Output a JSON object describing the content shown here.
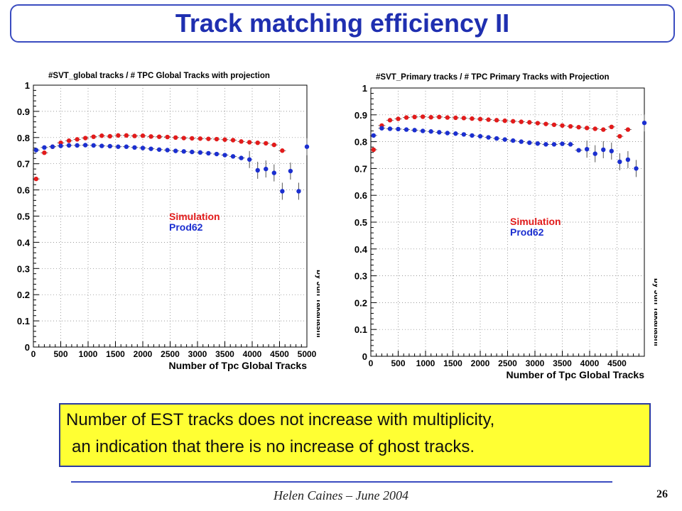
{
  "title": "Track matching efficiency II",
  "note": {
    "line1": "Number of EST tracks does not increase with multiplicity,",
    "line2": "an indication that there is no increase of ghost tracks."
  },
  "footer": {
    "author": "Helen Caines – June 2004",
    "page": "26"
  },
  "colors": {
    "simulation": "#e21b1b",
    "prod62": "#1b2fd0",
    "title": "#1f2fb0",
    "note_bg": "#ffff33"
  },
  "chart_data": [
    {
      "type": "scatter",
      "title": "#SVT_global tracks / # TPC Global Tracks with projection",
      "xlabel": "Number of Tpc Global Tracks",
      "ylabel": "",
      "xlim": [
        0,
        5000
      ],
      "ylim": [
        0,
        1
      ],
      "xticks": [
        "0",
        "500",
        "1000",
        "1500",
        "2000",
        "2500",
        "3000",
        "3500",
        "4000",
        "4500",
        "5000"
      ],
      "yticks": [
        "0",
        "0.1",
        "0.2",
        "0.3",
        "0.4",
        "0.5",
        "0.6",
        "0.7",
        "0.8",
        "0.9",
        "1"
      ],
      "grid": true,
      "legend": [
        "Simulation",
        "Prod62"
      ],
      "credit": "by Jun Takahashi",
      "series": [
        {
          "name": "Simulation",
          "color": "#e21b1b",
          "x": [
            50,
            200,
            350,
            500,
            650,
            800,
            950,
            1100,
            1250,
            1400,
            1550,
            1700,
            1850,
            2000,
            2150,
            2300,
            2450,
            2600,
            2750,
            2900,
            3050,
            3200,
            3350,
            3500,
            3650,
            3800,
            3950,
            4100,
            4250,
            4400,
            4550
          ],
          "y": [
            0.642,
            0.742,
            0.765,
            0.78,
            0.788,
            0.793,
            0.798,
            0.803,
            0.807,
            0.805,
            0.808,
            0.808,
            0.806,
            0.807,
            0.804,
            0.803,
            0.802,
            0.8,
            0.798,
            0.797,
            0.796,
            0.795,
            0.794,
            0.792,
            0.79,
            0.785,
            0.782,
            0.78,
            0.778,
            0.772,
            0.75
          ]
        },
        {
          "name": "Prod62",
          "color": "#1b2fd0",
          "x": [
            50,
            200,
            350,
            500,
            650,
            800,
            950,
            1100,
            1250,
            1400,
            1550,
            1700,
            1850,
            2000,
            2150,
            2300,
            2450,
            2600,
            2750,
            2900,
            3050,
            3200,
            3350,
            3500,
            3650,
            3800,
            3950,
            4100,
            4250,
            4400,
            4550,
            4700,
            4850,
            5000
          ],
          "y": [
            0.752,
            0.762,
            0.765,
            0.768,
            0.77,
            0.77,
            0.771,
            0.77,
            0.768,
            0.767,
            0.765,
            0.765,
            0.762,
            0.76,
            0.757,
            0.754,
            0.752,
            0.749,
            0.747,
            0.745,
            0.743,
            0.74,
            0.737,
            0.733,
            0.728,
            0.722,
            0.716,
            0.675,
            0.68,
            0.665,
            0.595,
            0.672,
            0.595,
            0.765
          ]
        }
      ]
    },
    {
      "type": "scatter",
      "title": "#SVT_Primary tracks / # TPC Primary Tracks with Projection",
      "xlabel": "Number of Tpc Global Tracks",
      "ylabel": "",
      "xlim": [
        0,
        5000
      ],
      "ylim": [
        0,
        1
      ],
      "xticks": [
        "0",
        "500",
        "1000",
        "1500",
        "2000",
        "2500",
        "3000",
        "3500",
        "4000",
        "4500"
      ],
      "yticks": [
        "0",
        "0.1",
        "0.2",
        "0.3",
        "0.4",
        "0.5",
        "0.6",
        "0.7",
        "0.8",
        "0.9",
        "1"
      ],
      "grid": true,
      "legend": [
        "Simulation",
        "Prod62"
      ],
      "credit": "by Jun Takahashi",
      "series": [
        {
          "name": "Simulation",
          "color": "#e21b1b",
          "x": [
            50,
            200,
            350,
            500,
            650,
            800,
            950,
            1100,
            1250,
            1400,
            1550,
            1700,
            1850,
            2000,
            2150,
            2300,
            2450,
            2600,
            2750,
            2900,
            3050,
            3200,
            3350,
            3500,
            3650,
            3800,
            3950,
            4100,
            4250,
            4400,
            4550,
            4700
          ],
          "y": [
            0.77,
            0.86,
            0.88,
            0.885,
            0.89,
            0.892,
            0.893,
            0.891,
            0.892,
            0.89,
            0.889,
            0.888,
            0.886,
            0.884,
            0.882,
            0.88,
            0.878,
            0.876,
            0.874,
            0.872,
            0.869,
            0.866,
            0.863,
            0.86,
            0.857,
            0.854,
            0.851,
            0.848,
            0.845,
            0.855,
            0.82,
            0.845
          ]
        },
        {
          "name": "Prod62",
          "color": "#1b2fd0",
          "x": [
            50,
            200,
            350,
            500,
            650,
            800,
            950,
            1100,
            1250,
            1400,
            1550,
            1700,
            1850,
            2000,
            2150,
            2300,
            2450,
            2600,
            2750,
            2900,
            3050,
            3200,
            3350,
            3500,
            3650,
            3800,
            3950,
            4100,
            4250,
            4400,
            4550,
            4700,
            4850,
            5000
          ],
          "y": [
            0.823,
            0.85,
            0.848,
            0.847,
            0.845,
            0.843,
            0.84,
            0.838,
            0.835,
            0.832,
            0.83,
            0.827,
            0.823,
            0.82,
            0.816,
            0.812,
            0.808,
            0.804,
            0.8,
            0.796,
            0.793,
            0.79,
            0.79,
            0.792,
            0.79,
            0.768,
            0.772,
            0.755,
            0.77,
            0.765,
            0.725,
            0.733,
            0.7,
            0.87
          ]
        }
      ]
    }
  ]
}
